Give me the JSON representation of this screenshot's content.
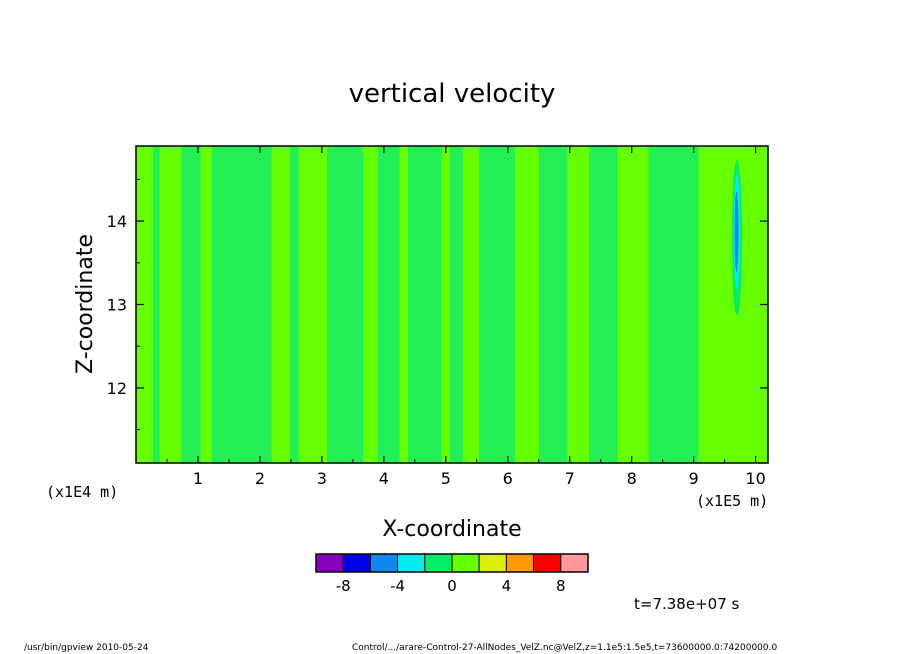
{
  "chart_data": {
    "type": "heatmap",
    "title": "vertical velocity",
    "xlabel": "X-coordinate",
    "ylabel": "Z-coordinate",
    "x_scale_label": "(x1E5 m)",
    "y_scale_label": "(x1E4 m)",
    "xlim": [
      0,
      10.2
    ],
    "ylim": [
      11.1,
      14.9
    ],
    "x_ticks": [
      1,
      2,
      3,
      4,
      5,
      6,
      7,
      8,
      9,
      10
    ],
    "y_ticks": [
      12,
      13,
      14
    ],
    "colorbar": {
      "levels": [
        -10,
        -8,
        -6,
        -4,
        -2,
        0,
        2,
        4,
        6,
        8,
        10
      ],
      "colors": [
        "#8800bb",
        "#0000ee",
        "#1188ee",
        "#00eeee",
        "#00ee66",
        "#66ff00",
        "#ddee00",
        "#ff9900",
        "#ff0000",
        "#ff9999"
      ],
      "tick_labels": [
        "-8",
        "-4",
        "0",
        "4",
        "8"
      ],
      "tick_values": [
        -8,
        -4,
        0,
        4,
        8
      ]
    },
    "background_color": "#22ee55",
    "anomaly": {
      "x": 9.7,
      "z": 13.8,
      "value_min": -6
    }
  },
  "time_label": "t=7.38e+07 s",
  "footer_left": "/usr/bin/gpview  2010-05-24",
  "footer_right": "Control/.../arare-Control-27-AllNodes_VelZ.nc@VelZ,z=1.1e5:1.5e5,t=73600000.0:74200000.0"
}
